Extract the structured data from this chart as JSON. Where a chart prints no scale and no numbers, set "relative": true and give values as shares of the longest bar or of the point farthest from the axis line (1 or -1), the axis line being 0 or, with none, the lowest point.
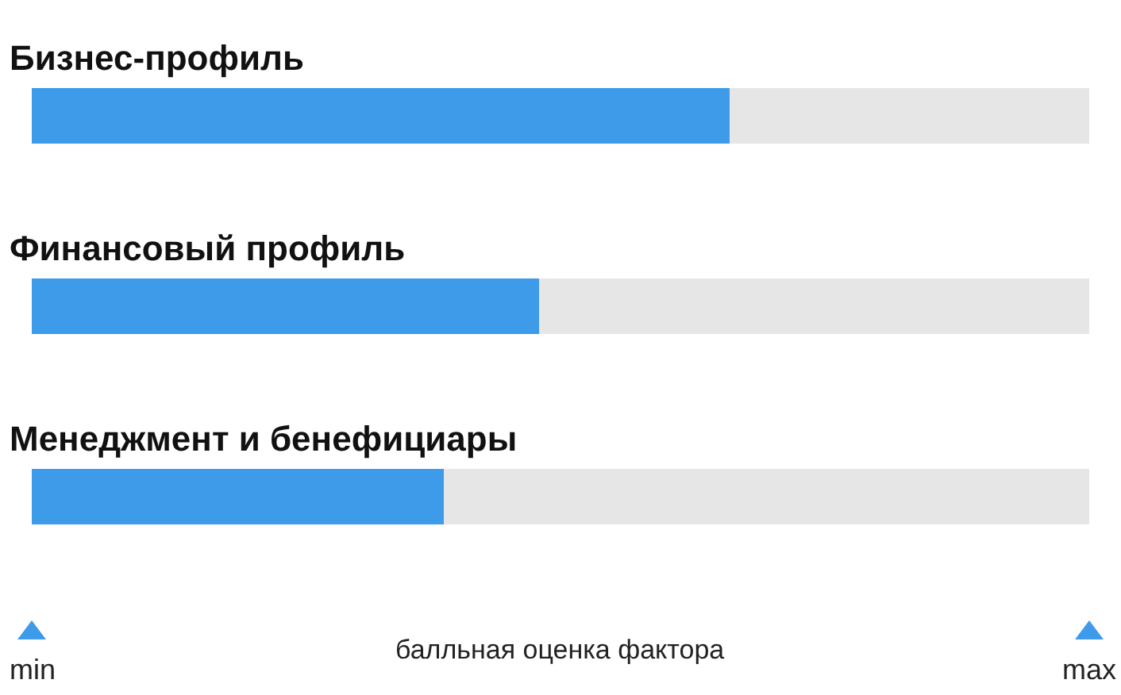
{
  "chart_data": {
    "type": "bar",
    "orientation": "horizontal",
    "stacked": true,
    "relative": true,
    "categories": [
      "Бизнес-профиль",
      "Финансовый профиль",
      "Менеджмент и бенефициары"
    ],
    "series": [
      {
        "color": "#3d9be9",
        "values": [
          0.66,
          0.48,
          0.39
        ]
      },
      {
        "color": "#e6e6e6",
        "values": [
          0.34,
          0.52,
          0.61
        ]
      }
    ],
    "xlabel": "балльная оценка фактора",
    "annotations": [
      "min",
      "max"
    ]
  }
}
